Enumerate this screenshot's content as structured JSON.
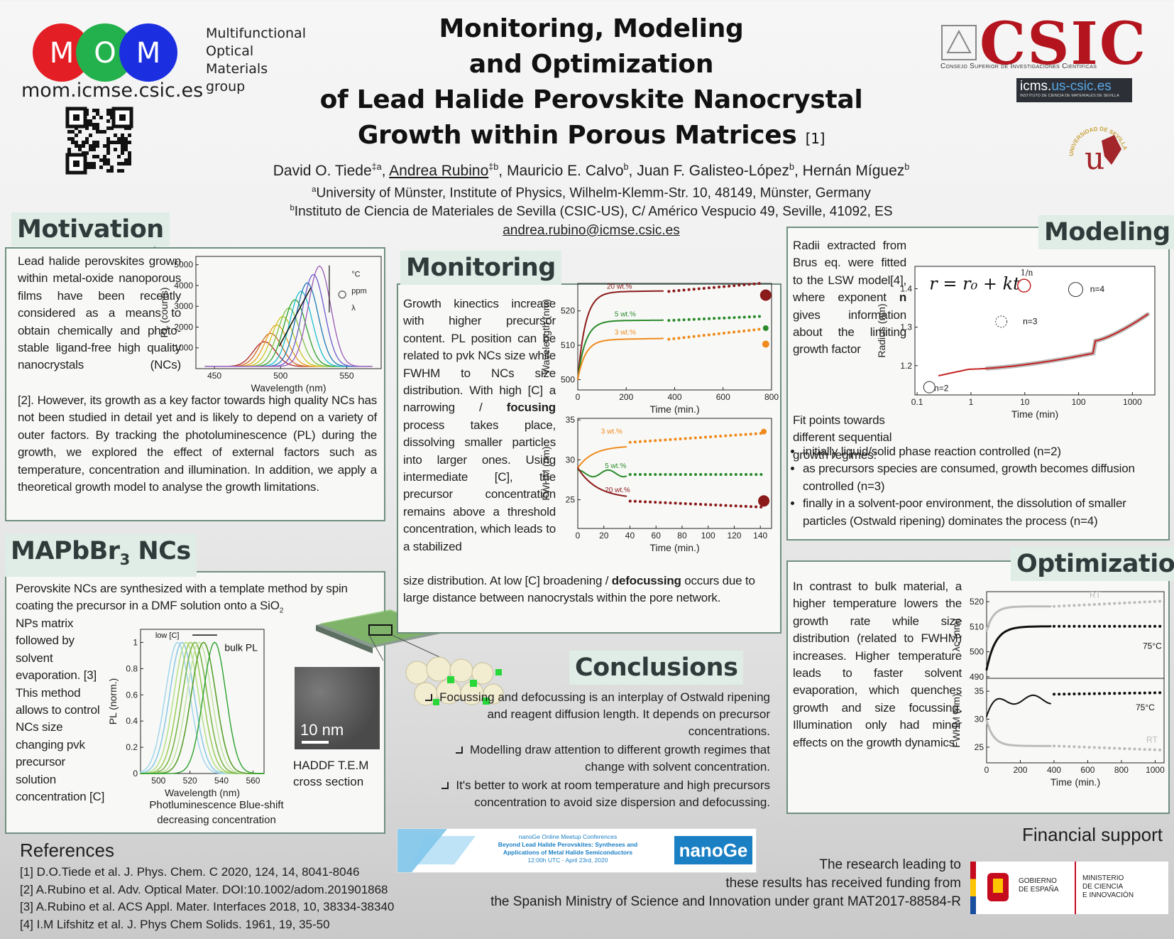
{
  "header": {
    "logo_letters": [
      "M",
      "O",
      "M"
    ],
    "url": "mom.icmse.csic.es",
    "group_lines": [
      "Multifunctional",
      "Optical",
      "Materials",
      "group"
    ],
    "title_lines": [
      "Monitoring, Modeling",
      "and Optimization",
      "of Lead Halide Perovskite Nanocrystal",
      "Growth within Porous Matrices"
    ],
    "title_ref": "[1]",
    "authors": [
      {
        "t": "David O. Tiede"
      },
      {
        "sup": "‡a"
      },
      {
        "t": ", "
      },
      {
        "u": "Andrea Rubino"
      },
      {
        "sup": "‡b"
      },
      {
        "t": ", Mauricio E. Calvo"
      },
      {
        "sup": "b"
      },
      {
        "t": ", Juan F. Galisteo-López"
      },
      {
        "sup": "b"
      },
      {
        "t": ", Hernán Míguez"
      },
      {
        "sup": "b"
      }
    ],
    "affiliation_a": [
      {
        "sup": "a"
      },
      {
        "t": "University of Münster, Institute of Physics, Wilhelm-Klemm-Str. 10, 48149, Münster, Germany"
      }
    ],
    "affiliation_b": [
      {
        "sup": "b"
      },
      {
        "t": "Instituto de Ciencia de Materiales de Sevilla (CSIC-US), C/ Américo Vespucio 49, Seville, 41092, ES"
      }
    ],
    "email": "andrea.rubino@icmse.csic.es",
    "csic": "CSIC",
    "csic_sub": "Consejo Superior de Investigaciones Científicas",
    "icms_a": "icms.",
    "icms_b": "us-csic.es",
    "icms_sub": "INSTITUTO DE CIENCIA DE MATERIALES DE SEVILLA",
    "us_text": "UNIVERSIDAD DE SEVILLA",
    "us_letter": "u"
  },
  "motivation": {
    "heading": "Motivation",
    "text_narrow": [
      {
        "t": "Lead halide perovskites grown within metal-oxide nanoporous films have been recently considered as a means to obtain chemically and photo-stable ligand-free high quality nanocrystals (NCs)"
      }
    ],
    "text_wide": [
      {
        "t": "[2]. However, its growth as a key factor towards high quality NCs has not been studied in detail yet and is likely to depend on a variety of outer factors. By tracking the photoluminescence (PL) during the growth, we explored the effect of external factors such as temperature, concentration and illumination. In addition, we apply a theoretical growth model to analyse the growth limitations."
      }
    ],
    "figure": {
      "xlabel": "Wavelength (nm)",
      "ylabel": "PL (counts)",
      "xlim": [
        436,
        576
      ],
      "ylim": [
        0,
        5400
      ],
      "xticks": [
        450,
        500,
        550
      ],
      "yticks": [
        1000,
        2000,
        3000,
        4000,
        5000
      ],
      "legend": [
        "°C",
        "ppm",
        "λ"
      ]
    }
  },
  "mapbbr": {
    "heading": [
      {
        "t": "MAPbBr"
      },
      {
        "sub": "3"
      },
      {
        "t": " NCs"
      }
    ],
    "text_wide": [
      {
        "t": "Perovskite NCs are synthesized with a template method by spin coating the precursor in a DMF solution onto a SiO"
      },
      {
        "sub": "2"
      }
    ],
    "text_narrow": [
      {
        "t": "NPs matrix followed by solvent evaporation. [3] This method allows to control NCs size changing pvk precursor solution concentration [C]"
      }
    ],
    "figure": {
      "xlabel": "Wavelength (nm)",
      "ylabel": "PL (norm.)",
      "xlim": [
        488.6,
        567
      ],
      "ylim": [
        0,
        1.1
      ],
      "xticks": [
        500,
        520,
        540,
        560
      ],
      "yticks": [
        0,
        0.2,
        0.4,
        0.6,
        0.8,
        1
      ],
      "low_label": "low [C]",
      "bulk_label": "bulk PL"
    },
    "caption_lines": [
      "Photluminescence Blue-shift",
      "decreasing concentration"
    ],
    "tem_scale": "10 nm",
    "tem_caption": [
      "HADDF T.E.M",
      "cross section"
    ]
  },
  "monitoring": {
    "heading": "Monitoring",
    "text_narrow": [
      {
        "t": "Growth kinectics increase with higher precursor content. PL position can be related to pvk NCs size while FWHM to NCs size distribution. With high [C] a narrowing / "
      },
      {
        "b": "focusing"
      },
      {
        "t": " process takes place, dissolving smaller particles into larger ones. Using intermediate [C], the precursor concentration remains above a threshold concentration, which leads to a stabilized"
      }
    ],
    "text_wide": [
      {
        "t": "size distribution. At low [C] broadening / "
      },
      {
        "b": "defocussing"
      },
      {
        "t": " occurs due to large distance between nanocrystals within the pore network."
      }
    ],
    "figure_top": {
      "xlabel": "Time (min.)",
      "ylabel": "Wavelength (nm)",
      "xlim": [
        0,
        800
      ],
      "ylim": [
        497,
        528
      ],
      "xticks": [
        0,
        200,
        400,
        600,
        800
      ],
      "yticks": [
        500,
        510,
        520
      ],
      "series": [
        "20 wt.%",
        "5 wt.%",
        "3 wt.%"
      ]
    },
    "figure_bottom": {
      "xlabel": "Time (min.)",
      "ylabel": "FWHM (nm)",
      "xlim": [
        0,
        148.6
      ],
      "ylim": [
        21.4,
        35.2
      ],
      "xticks": [
        0,
        20,
        40,
        60,
        80,
        100,
        120,
        140
      ],
      "yticks": [
        25,
        30,
        35
      ],
      "series": [
        "3 wt.%",
        "5 wt.%",
        "20 wt.%"
      ]
    }
  },
  "conclusions": {
    "heading": "Conclusions",
    "items": [
      "Focussing and defocussing is an interplay of Ostwald ripening and reagent diffusion length. It depends on precursor concentrations.",
      "Modelling draw attention to different growth regimes that change with solvent concentration.",
      "It's better to work at room temperature and high precursors concentration to avoid size dispersion and defocussing."
    ]
  },
  "modeling": {
    "heading": "Modeling",
    "text_narrow": [
      {
        "t": "Radii extracted from Brus eq. were fitted to the LSW model[4], where exponent "
      },
      {
        "b": "n"
      },
      {
        "t": " gives information about the limiting growth factor"
      }
    ],
    "text_lead": "Fit points towards different sequential growth regimes:",
    "bullets": [
      "initially liquid/solid phase reaction controlled (n=2)",
      "as precursors species are consumed, growth becomes diffusion controlled (n=3)",
      "finally in a solvent-poor environment, the dissolution of smaller particles (Ostwald ripening) dominates the process (n=4)"
    ],
    "figure": {
      "xlabel": "Time (min)",
      "ylabel": "Radius (nm)",
      "xlim": [
        0.091,
        2610
      ],
      "ylim": [
        1.124,
        1.458
      ],
      "xticks": [
        0.1,
        1,
        10,
        100,
        1000
      ],
      "yticks": [
        1.2,
        1.3,
        1.4
      ],
      "log_x": true,
      "equation": "r = r₀ + kt",
      "exponent": "1/n",
      "regimes": [
        "n=2",
        "n=3",
        "n=4"
      ]
    }
  },
  "optimization": {
    "heading": "Optimization",
    "text": "In contrast to bulk material, a higher temperature lowers the growth rate while size distribution (related to FWHM) increases. Higher temperature leads to faster solvent evaporation, which quenches growth and size focussing. Illumination only had minor effects on the growth dynamics.",
    "figure_top": {
      "ylabel": "λc (nm)",
      "xlim": [
        0,
        1053
      ],
      "ylim": [
        489.4,
        524
      ],
      "yticks": [
        490,
        500,
        510,
        520
      ],
      "series": [
        "RT",
        "75°C"
      ]
    },
    "figure_bottom": {
      "xlabel": "Time (min.)",
      "ylabel": "FWHM (nm)",
      "xlim": [
        0,
        1053
      ],
      "ylim": [
        22.2,
        37.3
      ],
      "xticks": [
        0,
        200,
        400,
        600,
        800,
        1000
      ],
      "yticks": [
        25,
        30,
        35
      ],
      "series": [
        "75°C",
        "RT"
      ]
    }
  },
  "references": {
    "heading": "References",
    "items": [
      "[1] D.O.Tiede et al. J. Phys. Chem. C 2020, 124, 14, 8041-8046",
      "[2] A.Rubino et al. Adv. Optical Mater. DOI:10.1002/adom.201901868",
      "[3] A.Rubino et al. ACS Appl. Mater. Interfaces 2018, 10, 38334-38340",
      "[4] I.M Lifshitz et al. J. Phys Chem Solids. 1961, 19, 35-50"
    ]
  },
  "banner": {
    "line1": "nanoGe Online Meetup Conferences",
    "line2": "Beyond Lead Halide Perovskites: Syntheses and",
    "line3": "Applications of Metal Halide Semiconductors",
    "line4": "12:00h UTC - April 23rd, 2020",
    "brand": "nanoGe"
  },
  "funding": {
    "heading": "Financial support",
    "lines": [
      "The research leading to",
      "these results has received funding from",
      "the Spanish Ministry of Science and Innovation under grant MAT2017-88584-R"
    ],
    "gobierno": [
      "GOBIERNO",
      "DE ESPAÑA"
    ],
    "ministerio": [
      "MINISTERIO",
      "DE CIENCIA",
      "E INNOVACIÓN"
    ]
  }
}
